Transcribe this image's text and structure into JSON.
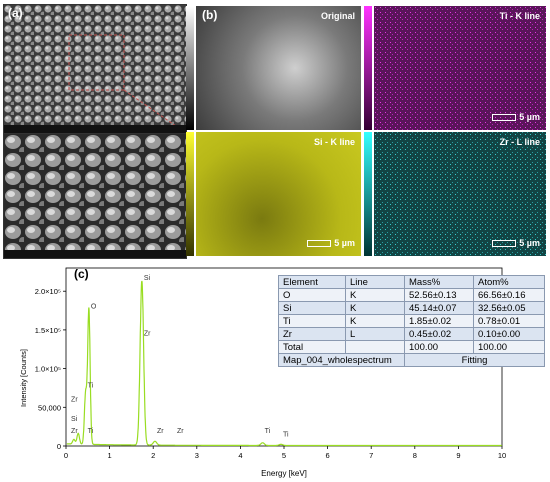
{
  "panels": {
    "a": {
      "label": "(a)"
    },
    "b": {
      "label": "(b)"
    },
    "c": {
      "label": "(c)"
    }
  },
  "maps": [
    {
      "title": "Original",
      "color": "#9a9a9a",
      "scale": ""
    },
    {
      "title": "Ti - K line",
      "color": "#e533e5",
      "scale": "5 µm"
    },
    {
      "title": "Si - K line",
      "color": "#dcdc1c",
      "scale": "5 µm"
    },
    {
      "title": "Zr - L line",
      "color": "#33cccc",
      "scale": "5 µm"
    }
  ],
  "table": {
    "headers": [
      "Element",
      "Line",
      "Mass%",
      "Atom%"
    ],
    "rows": [
      [
        "O",
        "K",
        "52.56±0.13",
        "66.56±0.16"
      ],
      [
        "Si",
        "K",
        "45.14±0.07",
        "32.56±0.05"
      ],
      [
        "Ti",
        "K",
        "1.85±0.02",
        "0.78±0.01"
      ],
      [
        "Zr",
        "L",
        "0.45±0.02",
        "0.10±0.00"
      ],
      [
        "Total",
        "",
        "100.00",
        "100.00"
      ]
    ],
    "footer_left": "Map_004_wholespectrum",
    "footer_right": "Fitting"
  },
  "chart_data": {
    "type": "line",
    "xlabel": "Energy [keV]",
    "ylabel": "Intensity [Counts]",
    "xlim": [
      0,
      10
    ],
    "ylim": [
      0,
      230000
    ],
    "x_ticks": [
      0,
      1,
      2,
      3,
      4,
      5,
      6,
      7,
      8,
      9,
      10
    ],
    "y_ticks": [
      {
        "value": 0,
        "label": "0"
      },
      {
        "value": 50000,
        "label": "50,000"
      },
      {
        "value": 100000,
        "label": "1.0×10⁵"
      },
      {
        "value": 150000,
        "label": "1.5×10⁵"
      },
      {
        "value": 200000,
        "label": "2.0×10⁵"
      }
    ],
    "line_color": "#99dd22",
    "peaks": [
      {
        "energy": 0.18,
        "height": 6000
      },
      {
        "energy": 0.28,
        "height": 14000
      },
      {
        "energy": 0.45,
        "height": 65000
      },
      {
        "energy": 0.525,
        "height": 175000
      },
      {
        "energy": 1.74,
        "height": 212000
      },
      {
        "energy": 2.04,
        "height": 5000
      },
      {
        "energy": 4.51,
        "height": 3500
      },
      {
        "energy": 4.93,
        "height": 1500
      }
    ],
    "annotations": [
      {
        "text": "Si",
        "x": 1.74,
        "y": 212000
      },
      {
        "text": "O",
        "x": 0.525,
        "y": 175000
      },
      {
        "text": "Zr",
        "x": 1.74,
        "y": 140000
      },
      {
        "text": "Ti",
        "x": 0.45,
        "y": 73000
      },
      {
        "text": "Zr",
        "x": 0.07,
        "y": 55000
      },
      {
        "text": "Si",
        "x": 0.07,
        "y": 30000
      },
      {
        "text": "Zr",
        "x": 0.07,
        "y": 14000
      },
      {
        "text": "Ti",
        "x": 0.45,
        "y": 14000
      },
      {
        "text": "Zr",
        "x": 2.04,
        "y": 14000
      },
      {
        "text": "Zr",
        "x": 2.5,
        "y": 14000
      },
      {
        "text": "Ti",
        "x": 4.51,
        "y": 14000
      },
      {
        "text": "Ti",
        "x": 4.93,
        "y": 10000
      }
    ]
  }
}
